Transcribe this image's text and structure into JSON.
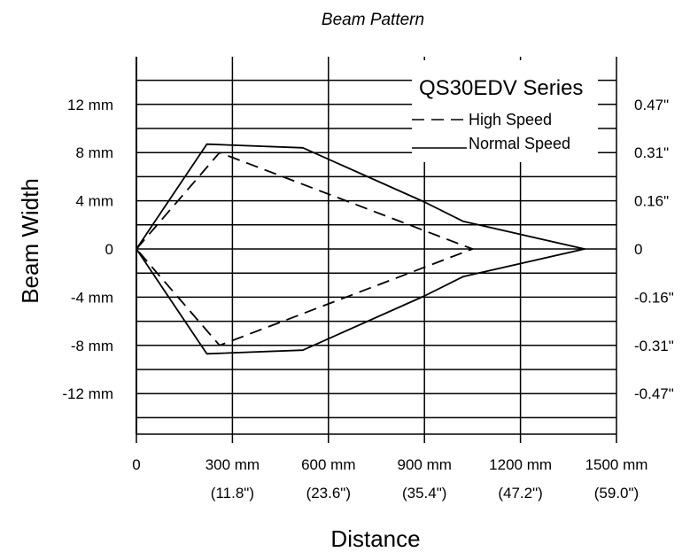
{
  "chart_data": {
    "type": "line",
    "title": "Beam Pattern",
    "xlabel": "Distance",
    "ylabel": "Beam Width",
    "xlim": [
      0,
      1500
    ],
    "ylim": [
      -14.7,
      14.7
    ],
    "x_ticks": [
      {
        "value": 0,
        "label": "0",
        "sublabel": ""
      },
      {
        "value": 300,
        "label": "300 mm",
        "sublabel": "(11.8\")"
      },
      {
        "value": 600,
        "label": "600 mm",
        "sublabel": "(23.6\")"
      },
      {
        "value": 900,
        "label": "900 mm",
        "sublabel": "(35.4\")"
      },
      {
        "value": 1200,
        "label": "1200 mm",
        "sublabel": "(47.2\")"
      },
      {
        "value": 1500,
        "label": "1500 mm",
        "sublabel": "(59.0\")"
      }
    ],
    "y_ticks_left": [
      {
        "value": 12,
        "label": "12 mm"
      },
      {
        "value": 8,
        "label": "8 mm"
      },
      {
        "value": 4,
        "label": "4 mm"
      },
      {
        "value": 0,
        "label": "0"
      },
      {
        "value": -4,
        "label": "-4 mm"
      },
      {
        "value": -8,
        "label": "-8 mm"
      },
      {
        "value": -12,
        "label": "-12 mm"
      }
    ],
    "y_ticks_right": [
      {
        "value": 12,
        "label": "0.47\""
      },
      {
        "value": 8,
        "label": "0.31\""
      },
      {
        "value": 4,
        "label": "0.16\""
      },
      {
        "value": 0,
        "label": "0"
      },
      {
        "value": -4,
        "label": "-0.16\""
      },
      {
        "value": -8,
        "label": "-0.31\""
      },
      {
        "value": -12,
        "label": "-0.47\""
      }
    ],
    "gridlines_y": [
      14,
      12,
      10,
      8,
      6,
      4,
      2,
      0,
      -2,
      -4,
      -6,
      -8,
      -10,
      -12,
      -14
    ],
    "grid": true,
    "legend": {
      "title": "QS30EDV Series",
      "placement": "top-right"
    },
    "series": [
      {
        "name": "High Speed",
        "style": "dashed",
        "x": [
          0,
          260,
          1050,
          260,
          0
        ],
        "y": [
          0,
          8,
          0,
          -8,
          0
        ]
      },
      {
        "name": "Normal Speed",
        "style": "solid",
        "x": [
          0,
          220,
          520,
          900,
          1020,
          1400,
          1020,
          900,
          520,
          220,
          0
        ],
        "y": [
          0,
          8.7,
          8.4,
          3.9,
          2.3,
          0,
          -2.3,
          -3.9,
          -8.4,
          -8.7,
          0
        ]
      }
    ]
  }
}
